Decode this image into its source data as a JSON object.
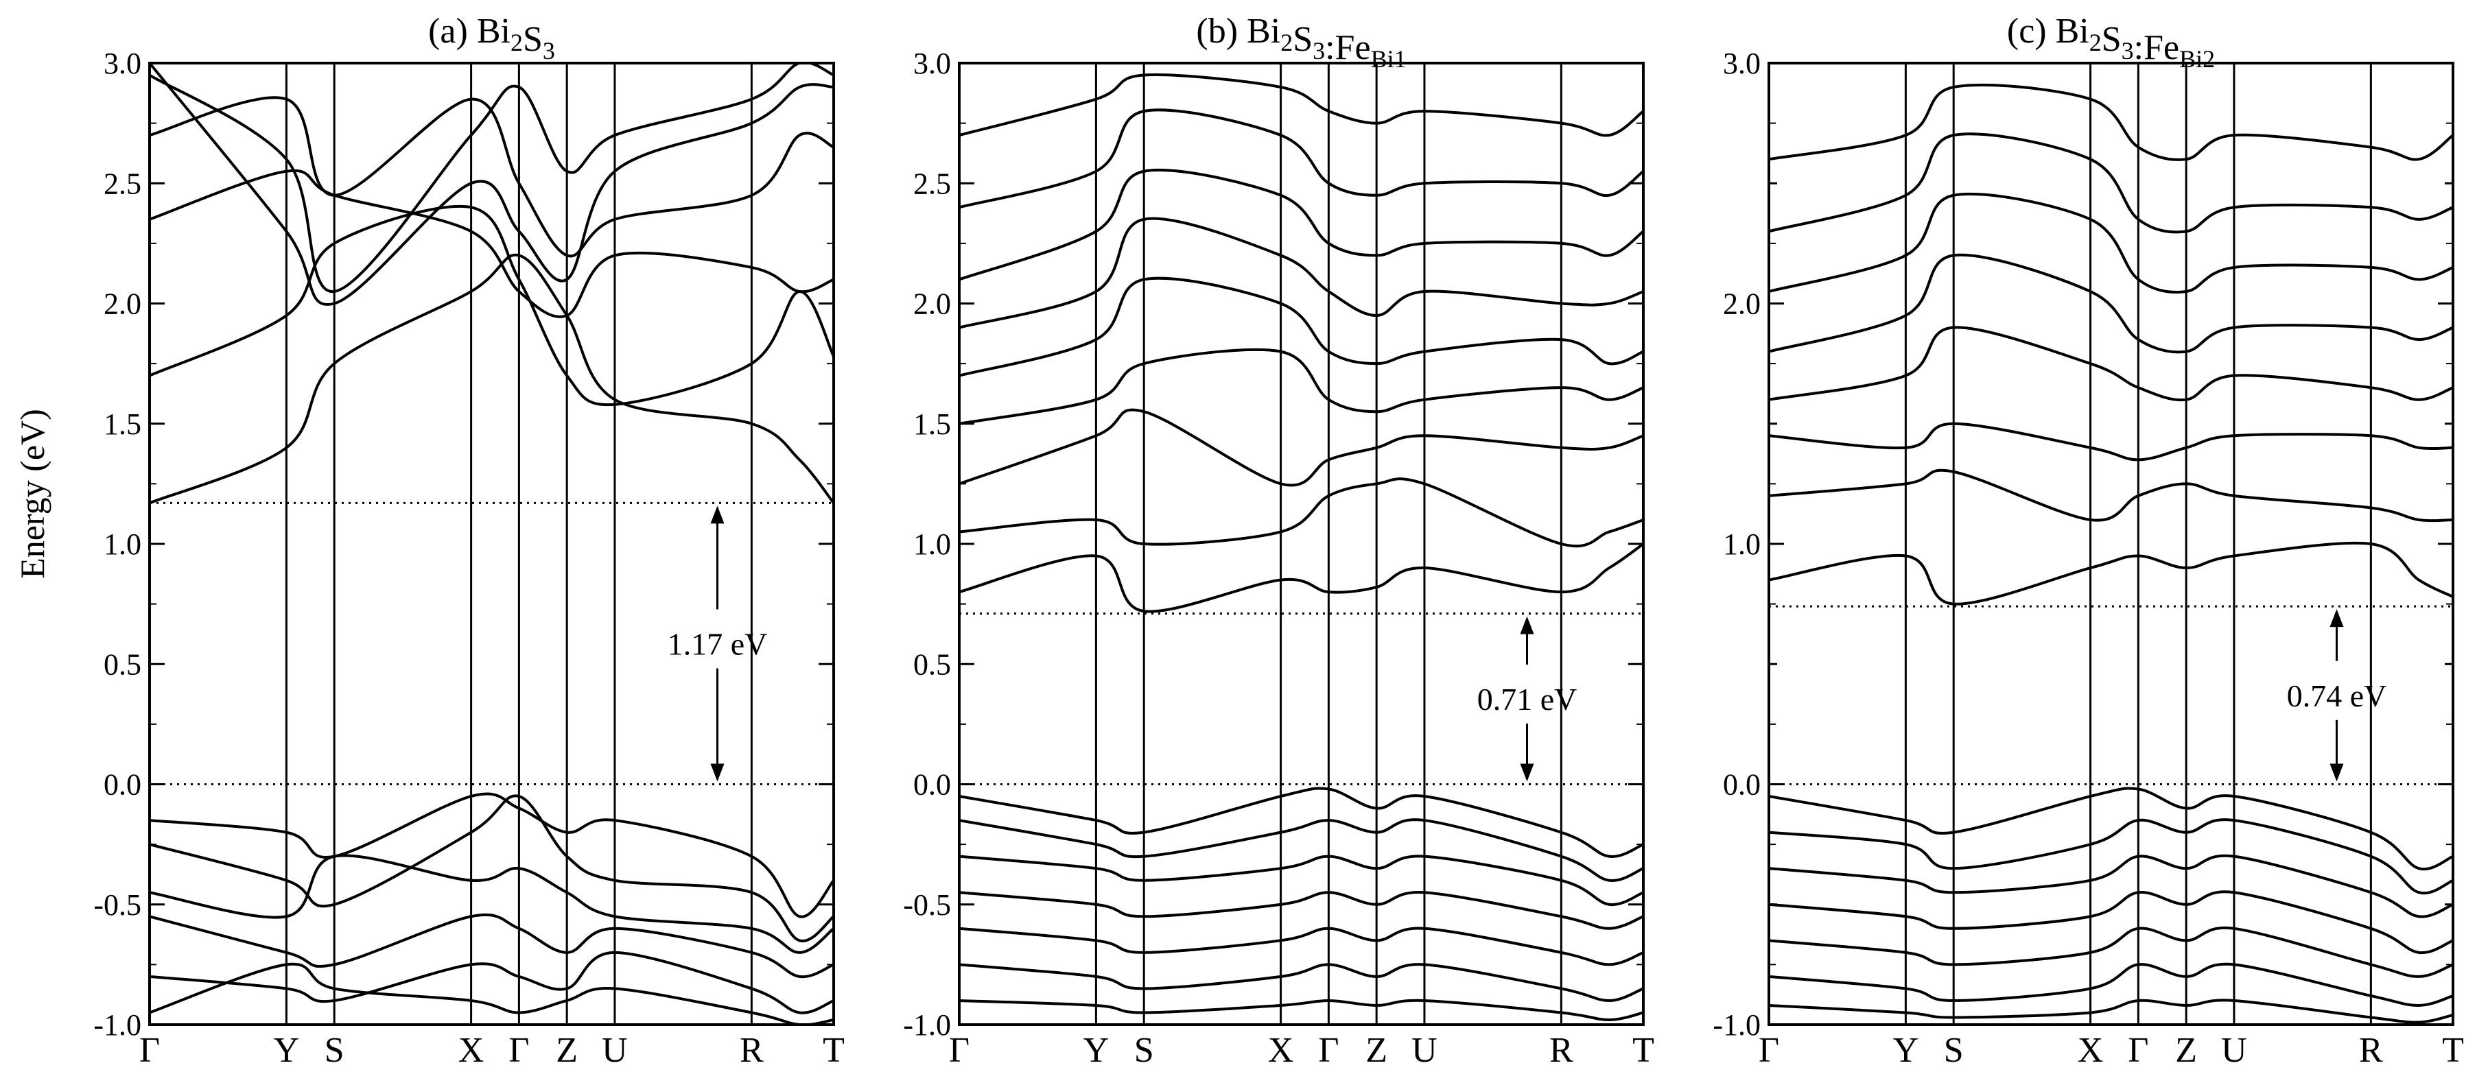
{
  "chart_data": {
    "type": "line",
    "ylabel": "Energy (eV)",
    "ylim": [
      -1.0,
      3.0
    ],
    "k_path_labels": [
      "Γ",
      "Y",
      "S",
      "X",
      "Γ",
      "Z",
      "U",
      "R",
      "T"
    ],
    "k_positions": [
      0,
      0.2,
      0.27,
      0.47,
      0.54,
      0.61,
      0.68,
      0.88,
      0.95,
      1.0
    ],
    "k_positions_note_labels_at": [
      0,
      0.2,
      0.27,
      0.47,
      0.54,
      0.61,
      0.68,
      0.88,
      1.0
    ],
    "reference_lines": [
      0.0
    ],
    "panels": [
      {
        "title_prefix": "(a) ",
        "title_parts": [
          {
            "t": "Bi",
            "sub": "2"
          },
          {
            "t": "S",
            "sub": "3"
          }
        ],
        "gap_value": 1.17,
        "gap_label": "1.17 eV",
        "gap_line_top": 1.17,
        "y_ticks": [
          "-1.0",
          "-0.5",
          "0.0",
          "0.5",
          "1.0",
          "1.5",
          "2.0",
          "2.5",
          "3.0"
        ],
        "bands": [
          [
            1.17,
            1.4,
            1.75,
            2.05,
            2.2,
            1.95,
            1.6,
            1.5,
            1.35,
            1.17
          ],
          [
            1.7,
            1.95,
            2.25,
            2.4,
            2.1,
            1.7,
            1.58,
            1.75,
            2.05,
            1.78
          ],
          [
            2.35,
            2.55,
            2.45,
            2.3,
            2.05,
            1.95,
            2.2,
            2.15,
            2.05,
            2.1
          ],
          [
            2.7,
            2.85,
            2.45,
            2.85,
            2.5,
            2.2,
            2.35,
            2.45,
            2.7,
            2.65
          ],
          [
            2.95,
            2.6,
            2.05,
            2.7,
            2.9,
            2.55,
            2.7,
            2.85,
            3.0,
            2.95
          ],
          [
            3.0,
            2.3,
            2.0,
            2.5,
            2.3,
            2.1,
            2.55,
            2.75,
            2.9,
            2.9
          ],
          [
            -0.15,
            -0.2,
            -0.3,
            -0.05,
            -0.1,
            -0.2,
            -0.15,
            -0.3,
            -0.55,
            -0.4
          ],
          [
            -0.25,
            -0.4,
            -0.5,
            -0.2,
            -0.05,
            -0.3,
            -0.4,
            -0.45,
            -0.65,
            -0.55
          ],
          [
            -0.45,
            -0.55,
            -0.3,
            -0.4,
            -0.35,
            -0.45,
            -0.55,
            -0.6,
            -0.7,
            -0.6
          ],
          [
            -0.55,
            -0.7,
            -0.75,
            -0.55,
            -0.6,
            -0.7,
            -0.6,
            -0.7,
            -0.8,
            -0.75
          ],
          [
            -0.8,
            -0.85,
            -0.9,
            -0.75,
            -0.8,
            -0.85,
            -0.7,
            -0.85,
            -0.95,
            -0.9
          ],
          [
            -0.95,
            -0.75,
            -0.85,
            -0.9,
            -0.95,
            -0.9,
            -0.85,
            -0.95,
            -1.0,
            -0.98
          ]
        ]
      },
      {
        "title_prefix": "(b) ",
        "title_parts": [
          {
            "t": "Bi",
            "sub": "2"
          },
          {
            "t": "S",
            "sub": "3"
          },
          {
            "t": ":Fe",
            "sub": "Bi1"
          }
        ],
        "gap_value": 0.71,
        "gap_label": "0.71 eV",
        "gap_line_top": 0.71,
        "y_ticks": [
          "-1.0",
          "-0.5",
          "0.0",
          "0.5",
          "1.0",
          "1.5",
          "2.0",
          "2.5",
          "3.0"
        ],
        "bands": [
          [
            0.8,
            0.95,
            0.72,
            0.85,
            0.8,
            0.82,
            0.9,
            0.8,
            0.9,
            1.0
          ],
          [
            1.05,
            1.1,
            1.0,
            1.05,
            1.2,
            1.25,
            1.25,
            1.0,
            1.05,
            1.1
          ],
          [
            1.25,
            1.45,
            1.55,
            1.25,
            1.35,
            1.4,
            1.45,
            1.4,
            1.4,
            1.45
          ],
          [
            1.5,
            1.6,
            1.75,
            1.8,
            1.6,
            1.55,
            1.6,
            1.65,
            1.6,
            1.65
          ],
          [
            1.7,
            1.85,
            2.1,
            2.0,
            1.8,
            1.75,
            1.8,
            1.85,
            1.75,
            1.8
          ],
          [
            1.9,
            2.05,
            2.35,
            2.2,
            2.05,
            1.95,
            2.05,
            2.0,
            2.0,
            2.05
          ],
          [
            2.1,
            2.3,
            2.55,
            2.45,
            2.25,
            2.2,
            2.25,
            2.25,
            2.2,
            2.3
          ],
          [
            2.4,
            2.55,
            2.8,
            2.7,
            2.5,
            2.45,
            2.5,
            2.5,
            2.45,
            2.55
          ],
          [
            2.7,
            2.85,
            2.95,
            2.9,
            2.8,
            2.75,
            2.8,
            2.75,
            2.7,
            2.8
          ],
          [
            -0.05,
            -0.15,
            -0.2,
            -0.05,
            -0.02,
            -0.1,
            -0.05,
            -0.2,
            -0.3,
            -0.25
          ],
          [
            -0.15,
            -0.25,
            -0.3,
            -0.2,
            -0.15,
            -0.2,
            -0.15,
            -0.3,
            -0.4,
            -0.35
          ],
          [
            -0.3,
            -0.35,
            -0.4,
            -0.35,
            -0.3,
            -0.35,
            -0.3,
            -0.4,
            -0.5,
            -0.45
          ],
          [
            -0.45,
            -0.5,
            -0.55,
            -0.5,
            -0.45,
            -0.5,
            -0.45,
            -0.55,
            -0.6,
            -0.55
          ],
          [
            -0.6,
            -0.65,
            -0.7,
            -0.65,
            -0.6,
            -0.65,
            -0.6,
            -0.7,
            -0.75,
            -0.7
          ],
          [
            -0.75,
            -0.8,
            -0.85,
            -0.8,
            -0.75,
            -0.8,
            -0.75,
            -0.85,
            -0.9,
            -0.85
          ],
          [
            -0.9,
            -0.92,
            -0.95,
            -0.92,
            -0.9,
            -0.92,
            -0.9,
            -0.95,
            -0.98,
            -0.95
          ]
        ]
      },
      {
        "title_prefix": "(c) ",
        "title_parts": [
          {
            "t": "Bi",
            "sub": "2"
          },
          {
            "t": "S",
            "sub": "3"
          },
          {
            "t": ":Fe",
            "sub": "Bi2"
          }
        ],
        "gap_value": 0.74,
        "gap_label": "0.74 eV",
        "gap_line_top": 0.74,
        "y_ticks": [
          "-1.0",
          "",
          "0.0",
          "",
          "1.0",
          "",
          "2.0",
          "",
          "3.0"
        ],
        "bands": [
          [
            0.85,
            0.95,
            0.75,
            0.9,
            0.95,
            0.9,
            0.95,
            1.0,
            0.85,
            0.78
          ],
          [
            1.2,
            1.25,
            1.3,
            1.1,
            1.2,
            1.25,
            1.2,
            1.15,
            1.1,
            1.1
          ],
          [
            1.45,
            1.4,
            1.5,
            1.4,
            1.35,
            1.4,
            1.45,
            1.45,
            1.4,
            1.4
          ],
          [
            1.6,
            1.7,
            1.9,
            1.75,
            1.65,
            1.6,
            1.7,
            1.65,
            1.6,
            1.65
          ],
          [
            1.8,
            1.95,
            2.2,
            2.05,
            1.85,
            1.8,
            1.9,
            1.9,
            1.85,
            1.9
          ],
          [
            2.05,
            2.2,
            2.45,
            2.35,
            2.1,
            2.05,
            2.15,
            2.15,
            2.1,
            2.15
          ],
          [
            2.3,
            2.45,
            2.7,
            2.6,
            2.35,
            2.3,
            2.4,
            2.4,
            2.35,
            2.4
          ],
          [
            2.6,
            2.7,
            2.9,
            2.85,
            2.65,
            2.6,
            2.7,
            2.65,
            2.6,
            2.7
          ],
          [
            -0.05,
            -0.15,
            -0.2,
            -0.05,
            -0.02,
            -0.1,
            -0.05,
            -0.2,
            -0.35,
            -0.3
          ],
          [
            -0.2,
            -0.25,
            -0.35,
            -0.25,
            -0.15,
            -0.2,
            -0.15,
            -0.3,
            -0.45,
            -0.4
          ],
          [
            -0.35,
            -0.4,
            -0.45,
            -0.4,
            -0.3,
            -0.35,
            -0.3,
            -0.45,
            -0.55,
            -0.5
          ],
          [
            -0.5,
            -0.55,
            -0.6,
            -0.55,
            -0.45,
            -0.5,
            -0.45,
            -0.6,
            -0.7,
            -0.65
          ],
          [
            -0.65,
            -0.7,
            -0.75,
            -0.7,
            -0.6,
            -0.65,
            -0.6,
            -0.75,
            -0.8,
            -0.75
          ],
          [
            -0.8,
            -0.85,
            -0.9,
            -0.85,
            -0.75,
            -0.8,
            -0.75,
            -0.88,
            -0.92,
            -0.88
          ],
          [
            -0.92,
            -0.95,
            -0.97,
            -0.95,
            -0.9,
            -0.92,
            -0.9,
            -0.97,
            -0.99,
            -0.96
          ]
        ]
      }
    ]
  }
}
